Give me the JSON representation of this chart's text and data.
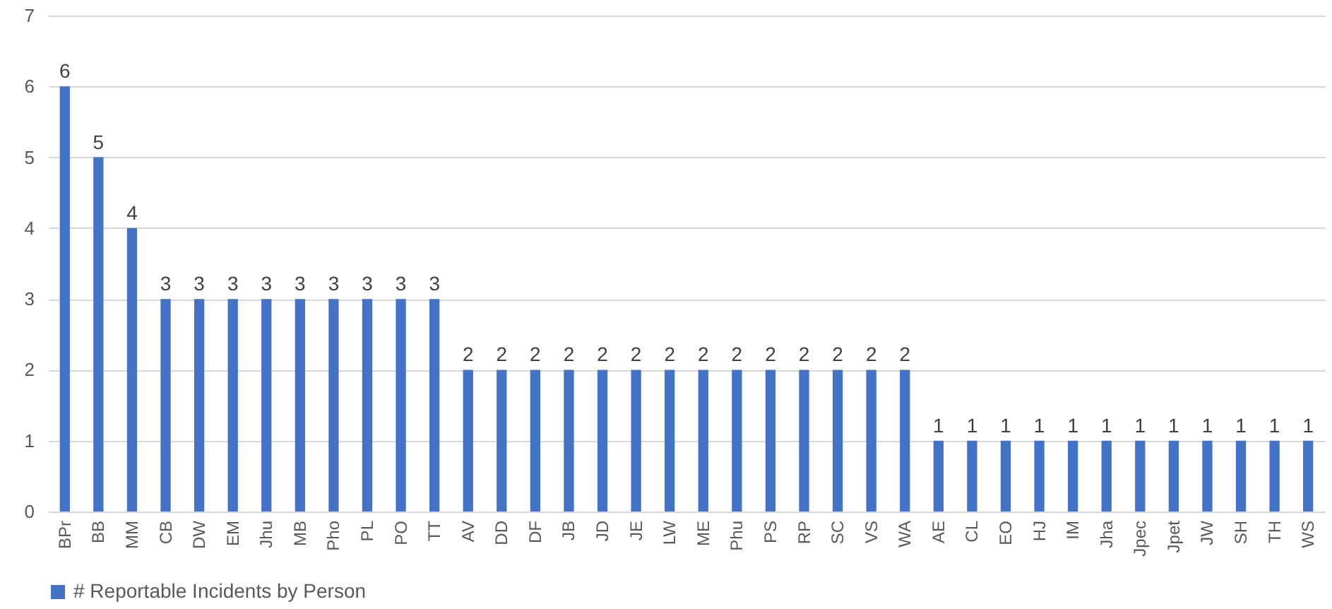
{
  "chart_data": {
    "type": "bar",
    "categories": [
      "BPr",
      "BB",
      "MM",
      "CB",
      "DW",
      "EM",
      "Jhu",
      "MB",
      "Pho",
      "PL",
      "PO",
      "TT",
      "AV",
      "DD",
      "DF",
      "JB",
      "JD",
      "JE",
      "LW",
      "ME",
      "Phu",
      "PS",
      "RP",
      "SC",
      "VS",
      "WA",
      "AE",
      "CL",
      "EO",
      "HJ",
      "IM",
      "Jha",
      "Jpec",
      "Jpet",
      "JW",
      "SH",
      "TH",
      "WS"
    ],
    "series": [
      {
        "name": "# Reportable Incidents by Person",
        "color": "#4472c4",
        "values": [
          6,
          5,
          4,
          3,
          3,
          3,
          3,
          3,
          3,
          3,
          3,
          3,
          2,
          2,
          2,
          2,
          2,
          2,
          2,
          2,
          2,
          2,
          2,
          2,
          2,
          2,
          1,
          1,
          1,
          1,
          1,
          1,
          1,
          1,
          1,
          1,
          1,
          1
        ]
      }
    ],
    "ylim": [
      0,
      7
    ],
    "yticks": [
      0,
      1,
      2,
      3,
      4,
      5,
      6,
      7
    ],
    "grid": "y",
    "legend": "bottom",
    "data_labels": true
  }
}
